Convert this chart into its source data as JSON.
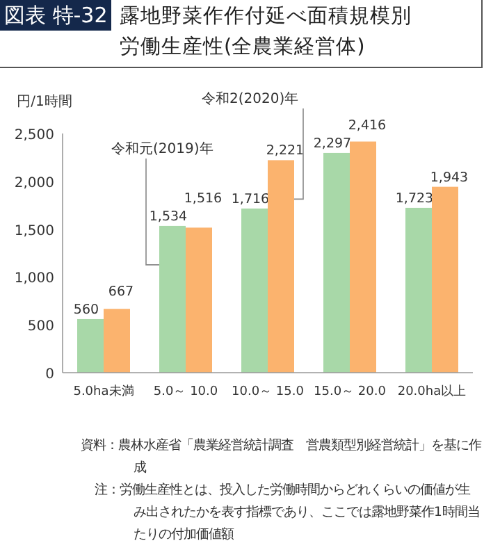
{
  "chart_data": {
    "type": "bar",
    "title": "露地野菜作作付延べ面積規模別労働生産性(全農業経営体)",
    "ylabel": "円/1時間",
    "categories": [
      "5.0ha未満",
      "5.0～ 10.0",
      "10.0～ 15.0",
      "15.0～ 20.0",
      "20.0ha以上"
    ],
    "series": [
      {
        "name": "令和元(2019)年",
        "color": "#a8d8a8",
        "values": [
          560,
          1534,
          1716,
          2297,
          1723
        ],
        "value_labels": [
          "560",
          "1,534",
          "1,716",
          "2,297",
          "1,723"
        ]
      },
      {
        "name": "令和2(2020)年",
        "color": "#fbb36e",
        "values": [
          667,
          1516,
          2221,
          2416,
          1943
        ],
        "value_labels": [
          "667",
          "1,516",
          "2,221",
          "2,416",
          "1,943"
        ]
      }
    ],
    "ylim": [
      0,
      2500
    ],
    "yticks": [
      0,
      {
        "value": 500,
        "label": "500"
      },
      {
        "value": 1000,
        "label": "1,000"
      },
      {
        "value": 1500,
        "label": "1,500"
      },
      {
        "value": 2000,
        "label": "2,000"
      },
      {
        "value": 2500,
        "label": "2,500"
      }
    ],
    "annotations": [
      "図表 特-32",
      "資料：農林水産省「農業経営統計調査　営農類型別経営統計」を基に作成",
      "注：労働生産性とは、投入した労働時間からどれくらいの価値が生み出されたかを表す指標であり、ここでは露地野菜作1時間当たりの付加価値額"
    ]
  }
}
